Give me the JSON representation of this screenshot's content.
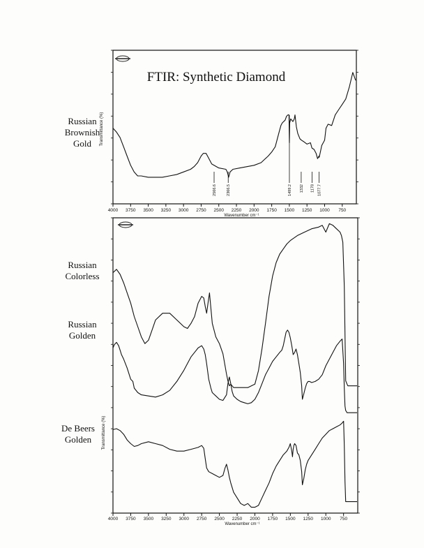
{
  "chart_data": [
    {
      "type": "line",
      "title": "FTIR: Synthetic Diamond",
      "xlabel": "Wavenumber cm⁻¹",
      "ylabel": "Transmittance (%)",
      "x_reversed": true,
      "xlim": [
        4000,
        550
      ],
      "ylim": [
        0,
        100
      ],
      "x_ticks": [
        "4000",
        "3750",
        "3500",
        "3250",
        "3000",
        "2750",
        "2500",
        "2250",
        "2000",
        "1750",
        "1500",
        "1250",
        "1000",
        "750"
      ],
      "peak_labels": [
        "2566.6",
        "2366.5",
        "1499.2",
        "1332",
        "1178",
        "1077.7"
      ],
      "series": [
        {
          "name": "Russian Brownish Gold",
          "x": [
            4000,
            3950,
            3900,
            3850,
            3800,
            3750,
            3700,
            3650,
            3600,
            3500,
            3400,
            3300,
            3200,
            3100,
            3000,
            2900,
            2850,
            2800,
            2750,
            2720,
            2680,
            2650,
            2600,
            2500,
            2400,
            2380,
            2360,
            2340,
            2300,
            2200,
            2100,
            2000,
            1900,
            1800,
            1750,
            1700,
            1650,
            1620,
            1600,
            1560,
            1540,
            1520,
            1505,
            1499,
            1495,
            1480,
            1450,
            1430,
            1420,
            1400,
            1380,
            1350,
            1330,
            1300,
            1250,
            1200,
            1180,
            1150,
            1120,
            1100,
            1080,
            1077,
            1060,
            1040,
            1020,
            1000,
            980,
            950,
            900,
            850,
            800,
            750,
            700,
            650,
            600,
            560
          ],
          "y": [
            56,
            53,
            49,
            42,
            35,
            28,
            23,
            20,
            20,
            19,
            19,
            19,
            20,
            21,
            23,
            25,
            27,
            30,
            35,
            37,
            37,
            34,
            29,
            26,
            25,
            23,
            19,
            23,
            25,
            26,
            27,
            28,
            30,
            35,
            38,
            42,
            52,
            58,
            60,
            62,
            65,
            66,
            66,
            45,
            60,
            63,
            61,
            63,
            66,
            57,
            52,
            48,
            47,
            46,
            44,
            45,
            41,
            40,
            37,
            33,
            35,
            34,
            38,
            43,
            45,
            47,
            56,
            59,
            58,
            66,
            70,
            74,
            78,
            87,
            98,
            92
          ]
        },
        {
          "name": "Russian Colorless",
          "x": [
            4000,
            3950,
            3900,
            3850,
            3800,
            3750,
            3700,
            3650,
            3600,
            3550,
            3500,
            3450,
            3400,
            3300,
            3200,
            3100,
            3000,
            2950,
            2900,
            2850,
            2800,
            2750,
            2720,
            2700,
            2680,
            2660,
            2640,
            2600,
            2550,
            2500,
            2450,
            2400,
            2380,
            2360,
            2340,
            2300,
            2200,
            2100,
            2000,
            1950,
            1900,
            1850,
            1800,
            1750,
            1700,
            1650,
            1600,
            1550,
            1500,
            1400,
            1300,
            1200,
            1100,
            1050,
            1000,
            950,
            900,
            850,
            800,
            780,
            760,
            740,
            720,
            700,
            690,
            680,
            660,
            640,
            620,
            600,
            580,
            560
          ],
          "y": [
            70,
            72,
            69,
            64,
            58,
            52,
            44,
            38,
            32,
            28,
            30,
            36,
            42,
            46,
            46,
            42,
            38,
            37,
            40,
            44,
            52,
            56,
            55,
            50,
            46,
            52,
            58,
            40,
            32,
            28,
            22,
            10,
            6,
            3,
            4,
            2,
            2,
            2,
            4,
            12,
            25,
            40,
            56,
            68,
            76,
            81,
            84,
            87,
            89,
            92,
            94,
            96,
            97,
            98,
            94,
            99,
            98,
            96,
            94,
            92,
            88,
            62,
            6,
            4,
            3,
            3,
            3,
            3,
            3,
            3,
            3,
            3
          ]
        },
        {
          "name": "Russian Golden",
          "x": [
            4000,
            3980,
            3950,
            3920,
            3900,
            3880,
            3850,
            3800,
            3750,
            3720,
            3700,
            3650,
            3600,
            3500,
            3400,
            3300,
            3200,
            3100,
            3000,
            2950,
            2900,
            2850,
            2800,
            2750,
            2720,
            2700,
            2680,
            2650,
            2620,
            2600,
            2550,
            2500,
            2450,
            2400,
            2380,
            2360,
            2340,
            2320,
            2300,
            2250,
            2200,
            2150,
            2100,
            2050,
            2000,
            1950,
            1900,
            1850,
            1800,
            1750,
            1700,
            1650,
            1620,
            1600,
            1580,
            1560,
            1540,
            1520,
            1500,
            1480,
            1460,
            1440,
            1420,
            1400,
            1380,
            1360,
            1340,
            1330,
            1310,
            1290,
            1270,
            1250,
            1230,
            1200,
            1150,
            1100,
            1050,
            1000,
            950,
            900,
            850,
            800,
            770,
            750,
            740,
            730,
            720,
            700,
            690,
            680,
            670,
            650,
            620,
            600,
            580,
            560
          ],
          "y": [
            76,
            79,
            81,
            78,
            74,
            70,
            66,
            58,
            48,
            46,
            40,
            36,
            34,
            33,
            32,
            34,
            38,
            46,
            56,
            62,
            68,
            72,
            76,
            78,
            75,
            70,
            62,
            48,
            40,
            36,
            33,
            30,
            29,
            34,
            44,
            50,
            44,
            37,
            33,
            30,
            28,
            27,
            26,
            27,
            30,
            36,
            44,
            52,
            58,
            64,
            68,
            72,
            74,
            78,
            84,
            90,
            92,
            90,
            85,
            78,
            70,
            72,
            75,
            70,
            62,
            54,
            42,
            30,
            35,
            40,
            44,
            46,
            46,
            45,
            46,
            48,
            52,
            60,
            66,
            72,
            78,
            82,
            84,
            62,
            40,
            24,
            20,
            18,
            18,
            18,
            18,
            18,
            18,
            18,
            18,
            18
          ]
        },
        {
          "name": "De Beers Golden",
          "x": [
            4000,
            3950,
            3900,
            3850,
            3800,
            3750,
            3700,
            3650,
            3600,
            3500,
            3400,
            3300,
            3200,
            3100,
            3000,
            2900,
            2800,
            2750,
            2720,
            2700,
            2680,
            2650,
            2600,
            2550,
            2500,
            2450,
            2420,
            2400,
            2380,
            2360,
            2340,
            2300,
            2250,
            2200,
            2150,
            2100,
            2050,
            2000,
            1950,
            1900,
            1850,
            1800,
            1750,
            1700,
            1650,
            1600,
            1550,
            1520,
            1500,
            1480,
            1470,
            1460,
            1450,
            1440,
            1420,
            1400,
            1380,
            1360,
            1340,
            1330,
            1310,
            1290,
            1270,
            1250,
            1200,
            1150,
            1100,
            1050,
            1000,
            950,
            900,
            850,
            800,
            770,
            750,
            740,
            730,
            720,
            700,
            680,
            650,
            600,
            560
          ],
          "y": [
            87,
            88,
            86,
            82,
            76,
            72,
            69,
            70,
            72,
            74,
            72,
            70,
            66,
            64,
            64,
            66,
            68,
            70,
            67,
            56,
            46,
            42,
            40,
            38,
            36,
            38,
            46,
            50,
            44,
            36,
            30,
            20,
            14,
            8,
            6,
            8,
            4,
            4,
            6,
            14,
            22,
            30,
            40,
            48,
            54,
            60,
            64,
            68,
            72,
            64,
            58,
            66,
            70,
            72,
            70,
            62,
            60,
            54,
            42,
            28,
            35,
            44,
            50,
            54,
            60,
            66,
            72,
            78,
            82,
            86,
            88,
            90,
            92,
            94,
            96,
            70,
            32,
            10,
            10,
            10,
            10,
            10,
            10
          ]
        }
      ]
    }
  ]
}
